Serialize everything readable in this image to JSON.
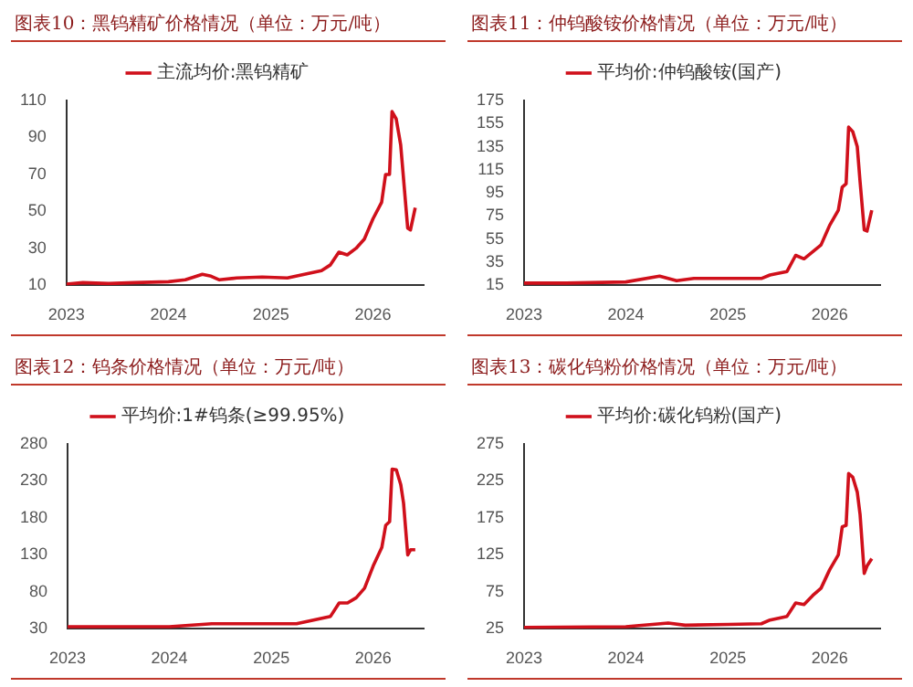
{
  "chart_data": [
    {
      "type": "line",
      "title": "图表10：黑钨精矿价格情况（单位：万元/吨）",
      "x": [
        "2023-01",
        "2023-03",
        "2023-06",
        "2023-09",
        "2024-01",
        "2024-03",
        "2024-04",
        "2024-05",
        "2024-06",
        "2024-07",
        "2024-09",
        "2024-12",
        "2025-03",
        "2025-05",
        "2025-07",
        "2025-08",
        "2025-09",
        "2025-10",
        "2025-11",
        "2025-12",
        "2026-01",
        "2026-02",
        "2026-02-15",
        "2026-03-01",
        "2026-03-10",
        "2026-03-25",
        "2026-04-10",
        "2026-04-20",
        "2026-05-05",
        "2026-05-15",
        "2026-06-01"
      ],
      "series": [
        {
          "name": "主流均价:黑钨精矿",
          "color": "#d0101b",
          "values": [
            10.7,
            11.5,
            11,
            11.5,
            12,
            13,
            14.5,
            16,
            15,
            13,
            14,
            14.5,
            14,
            16,
            18,
            21,
            28,
            26.5,
            30,
            35,
            46,
            55,
            70,
            70,
            104,
            100,
            86,
            68,
            41,
            40,
            52
          ]
        }
      ],
      "xlim": [
        "2023-01-01",
        "2026-07-01"
      ],
      "xticks": [
        {
          "value": "2023-01-01",
          "label": "2023"
        },
        {
          "value": "2024-01-01",
          "label": "2024"
        },
        {
          "value": "2025-01-01",
          "label": "2025"
        },
        {
          "value": "2026-01-01",
          "label": "2026"
        }
      ],
      "ylim": [
        10,
        110
      ],
      "yticks": [
        10,
        30,
        50,
        70,
        90,
        110
      ],
      "grid": false,
      "legend": "top",
      "marker": "none",
      "line_style": "solid"
    },
    {
      "type": "line",
      "title": "图表11：仲钨酸铵价格情况（单位：万元/吨）",
      "x": [
        "2023-01",
        "2023-06",
        "2024-01",
        "2024-05",
        "2024-07",
        "2024-09",
        "2025-01",
        "2025-05",
        "2025-06",
        "2025-08",
        "2025-09",
        "2025-10",
        "2025-11",
        "2025-12",
        "2026-01",
        "2026-02",
        "2026-02-15",
        "2026-03-01",
        "2026-03-10",
        "2026-03-25",
        "2026-04-10",
        "2026-04-20",
        "2026-05-05",
        "2026-05-15",
        "2026-06-01"
      ],
      "series": [
        {
          "name": "平均价:仲钨酸铵(国产)",
          "color": "#d0101b",
          "values": [
            17,
            17,
            18,
            23,
            19,
            21,
            21,
            21,
            24,
            27,
            41,
            38,
            44,
            50,
            67,
            80,
            100,
            103,
            152,
            148,
            135,
            105,
            63,
            62,
            80
          ]
        }
      ],
      "xlim": [
        "2023-01-01",
        "2026-07-01"
      ],
      "xticks": [
        {
          "value": "2023-01-01",
          "label": "2023"
        },
        {
          "value": "2024-01-01",
          "label": "2024"
        },
        {
          "value": "2025-01-01",
          "label": "2025"
        },
        {
          "value": "2026-01-01",
          "label": "2026"
        }
      ],
      "ylim": [
        15,
        175
      ],
      "yticks": [
        15,
        35,
        55,
        75,
        95,
        115,
        135,
        155,
        175
      ],
      "grid": false,
      "legend": "top",
      "marker": "none",
      "line_style": "solid"
    },
    {
      "type": "line",
      "title": "图表12：钨条价格情况（单位：万元/吨）",
      "x": [
        "2023-01",
        "2024-01",
        "2024-06",
        "2025-01",
        "2025-04",
        "2025-06",
        "2025-08",
        "2025-09",
        "2025-10",
        "2025-11",
        "2025-12",
        "2026-01",
        "2026-02",
        "2026-02-15",
        "2026-03-01",
        "2026-03-10",
        "2026-03-25",
        "2026-04-10",
        "2026-04-20",
        "2026-05-05",
        "2026-05-15",
        "2026-06-01"
      ],
      "series": [
        {
          "name": "平均价:1#钨条(≥99.95%)",
          "color": "#d0101b",
          "values": [
            33,
            33,
            37,
            37,
            37,
            42,
            47,
            65,
            65,
            72,
            85,
            115,
            140,
            170,
            175,
            246,
            245,
            225,
            200,
            130,
            137,
            137
          ]
        }
      ],
      "xlim": [
        "2023-01-01",
        "2026-07-01"
      ],
      "xticks": [
        {
          "value": "2023-01-01",
          "label": "2023"
        },
        {
          "value": "2024-01-01",
          "label": "2024"
        },
        {
          "value": "2025-01-01",
          "label": "2025"
        },
        {
          "value": "2026-01-01",
          "label": "2026"
        }
      ],
      "ylim": [
        30,
        280
      ],
      "yticks": [
        30,
        80,
        130,
        180,
        230,
        280
      ],
      "grid": false,
      "legend": "top",
      "marker": "none",
      "line_style": "solid"
    },
    {
      "type": "line",
      "title": "图表13：碳化钨粉价格情况（单位：万元/吨）",
      "x": [
        "2023-01",
        "2024-01",
        "2024-06",
        "2024-08",
        "2025-01",
        "2025-05",
        "2025-06",
        "2025-08",
        "2025-09",
        "2025-10",
        "2025-11",
        "2025-12",
        "2026-01",
        "2026-02",
        "2026-02-15",
        "2026-03-01",
        "2026-03-10",
        "2026-03-25",
        "2026-04-10",
        "2026-04-20",
        "2026-05-05",
        "2026-05-15",
        "2026-06-01"
      ],
      "series": [
        {
          "name": "平均价:碳化钨粉(国产)",
          "color": "#d0101b",
          "values": [
            27,
            28,
            33,
            30,
            31,
            32,
            37,
            42,
            60,
            58,
            70,
            80,
            105,
            125,
            163,
            165,
            235,
            230,
            210,
            180,
            100,
            110,
            120
          ]
        }
      ],
      "xlim": [
        "2023-01-01",
        "2026-07-01"
      ],
      "xticks": [
        {
          "value": "2023-01-01",
          "label": "2023"
        },
        {
          "value": "2024-01-01",
          "label": "2024"
        },
        {
          "value": "2025-01-01",
          "label": "2025"
        },
        {
          "value": "2026-01-01",
          "label": "2026"
        }
      ],
      "ylim": [
        25,
        275
      ],
      "yticks": [
        25,
        75,
        125,
        175,
        225,
        275
      ],
      "grid": false,
      "legend": "top",
      "marker": "none",
      "line_style": "solid"
    }
  ]
}
